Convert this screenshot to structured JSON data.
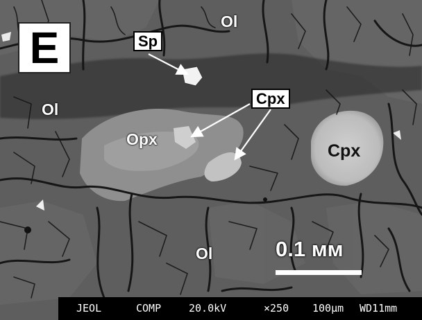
{
  "panel_letter": "E",
  "minerals": {
    "ol_top": "Ol",
    "ol_left": "Ol",
    "ol_bottom": "Ol",
    "sp": "Sp",
    "cpx_box": "Cpx",
    "opx": "Opx",
    "cpx_grain": "Cpx"
  },
  "scale_bar": {
    "label": "0.1 мм"
  },
  "databar": {
    "instrument": "JEOL",
    "mode": "COMP",
    "voltage": "20.0kV",
    "magnification": "×250",
    "scale": "100μm",
    "working_distance": "WD11mm"
  },
  "colors": {
    "olivine": "#5f5f5f",
    "cracks": "#1a1a1a",
    "orthopyroxene": "#9a9a9a",
    "clinopyroxene": "#c8c8c8",
    "spinel": "#f4f4f4"
  }
}
